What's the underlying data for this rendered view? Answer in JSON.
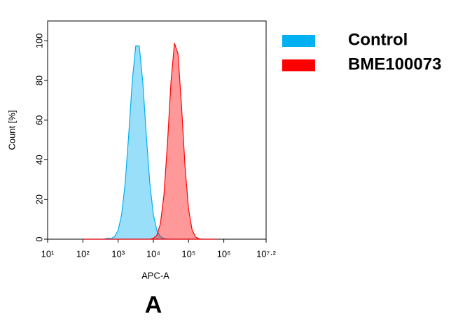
{
  "chart_data": {
    "type": "area",
    "xlabel": "APC-A",
    "ylabel": "Count [%]",
    "caption": "A",
    "xscale": "log",
    "xlim": [
      10,
      15848932
    ],
    "ylim": [
      0,
      110
    ],
    "xticks": [
      {
        "value": 10,
        "label": "10¹"
      },
      {
        "value": 100,
        "label": "10²"
      },
      {
        "value": 1000,
        "label": "10³"
      },
      {
        "value": 10000,
        "label": "10⁴"
      },
      {
        "value": 100000,
        "label": "10⁵"
      },
      {
        "value": 1000000,
        "label": "10⁶"
      },
      {
        "value": 15848932,
        "label": "10⁷·²"
      }
    ],
    "yticks": [
      0,
      20,
      40,
      60,
      80,
      100
    ],
    "legend": "right",
    "x": [
      100,
      126,
      158,
      200,
      251,
      316,
      398,
      501,
      631,
      794,
      1000,
      1259,
      1585,
      1995,
      2512,
      3162,
      3981,
      5012,
      6310,
      7943,
      10000,
      12589,
      15849,
      19953,
      25119,
      31623,
      39811,
      50119,
      63096,
      79433,
      100000,
      125893,
      158489,
      199526,
      251189,
      316228,
      398107,
      501187,
      630957
    ],
    "series": [
      {
        "name": "Control",
        "color": "#00b0f0",
        "values": [
          0,
          0,
          0,
          0,
          0,
          0,
          0,
          0.5,
          0.3,
          1.3,
          4.4,
          12.4,
          28.2,
          52.4,
          79.3,
          97.4,
          97.4,
          79.3,
          52.4,
          28.2,
          12.4,
          4.4,
          1.3,
          0.3,
          0.1,
          0,
          0,
          0,
          0,
          0,
          0,
          0,
          0,
          0,
          0,
          0,
          0,
          0,
          0
        ]
      },
      {
        "name": "BME100073",
        "color": "#ff0000",
        "values": [
          0,
          0,
          0,
          0,
          0,
          0,
          0,
          0,
          0,
          0,
          0,
          0,
          0,
          0,
          0,
          0,
          0,
          0,
          0,
          0,
          0.4,
          2.0,
          7.7,
          22.1,
          48.1,
          79.1,
          98.8,
          93.4,
          67.0,
          36.4,
          15.0,
          4.7,
          1.1,
          0.2,
          0,
          0,
          0,
          0,
          0
        ]
      }
    ]
  }
}
